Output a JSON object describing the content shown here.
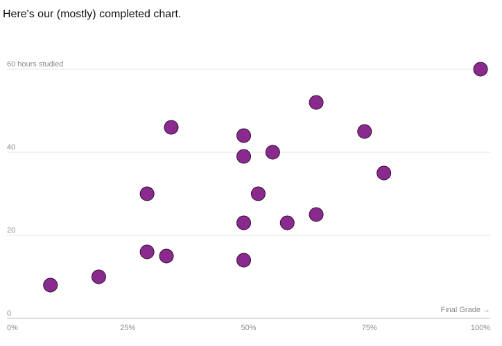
{
  "title": "Here's our (mostly) completed chart.",
  "chart_data": {
    "type": "scatter",
    "title": "Here's our (mostly) completed chart.",
    "xlabel": "Final Grade →",
    "ylabel": "hours studied",
    "xlim": [
      0,
      100
    ],
    "ylim": [
      0,
      60
    ],
    "x_ticks": [
      {
        "value": 0,
        "label": "0%"
      },
      {
        "value": 25,
        "label": "25%"
      },
      {
        "value": 50,
        "label": "50%"
      },
      {
        "value": 75,
        "label": "75%"
      },
      {
        "value": 100,
        "label": "100%"
      }
    ],
    "y_ticks": [
      {
        "value": 0,
        "label": "0"
      },
      {
        "value": 20,
        "label": "20"
      },
      {
        "value": 40,
        "label": "40"
      },
      {
        "value": 60,
        "label": "60 hours studied"
      }
    ],
    "grid": "horizontal",
    "point_color": "#8b2a8e",
    "point_stroke": "#2e0f30",
    "gridline_color": "#e6e6e6",
    "axis_color": "#bdbdbd",
    "points": [
      {
        "x": 9,
        "y": 8
      },
      {
        "x": 19,
        "y": 10
      },
      {
        "x": 29,
        "y": 16
      },
      {
        "x": 33,
        "y": 15
      },
      {
        "x": 29,
        "y": 30
      },
      {
        "x": 34,
        "y": 46
      },
      {
        "x": 49,
        "y": 14
      },
      {
        "x": 49,
        "y": 23
      },
      {
        "x": 49,
        "y": 39
      },
      {
        "x": 49,
        "y": 44
      },
      {
        "x": 52,
        "y": 30
      },
      {
        "x": 55,
        "y": 40
      },
      {
        "x": 58,
        "y": 23
      },
      {
        "x": 64,
        "y": 25
      },
      {
        "x": 64,
        "y": 52
      },
      {
        "x": 74,
        "y": 45
      },
      {
        "x": 78,
        "y": 35
      },
      {
        "x": 98,
        "y": 60
      }
    ]
  }
}
